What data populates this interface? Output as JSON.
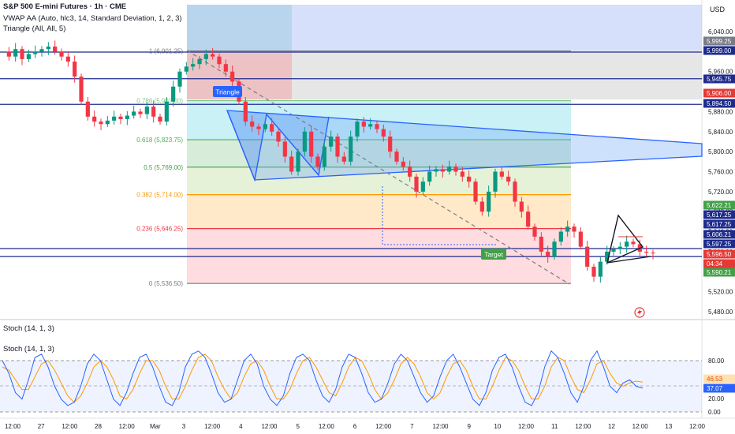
{
  "header": {
    "symbol": "S&P 500 E-mini Futures · 1h · CME",
    "indicator_vwap": "VWAP AA (Auto, hlc3, 14, Standard Deviation, 1, 2, 3)",
    "indicator_triangle": "Triangle (All, All, 5)"
  },
  "axis": {
    "currency": "USD",
    "price_ticks": [
      "6,040.00",
      "6,000.00",
      "5,960.00",
      "5,920.00",
      "5,880.00",
      "5,840.00",
      "5,800.00",
      "5,760.00",
      "5,720.00",
      "5,680.00",
      "5,640.00",
      "5,600.00",
      "5,560.00",
      "5,520.00",
      "5,480.00"
    ],
    "time_ticks": [
      "12:00",
      "27",
      "12:00",
      "28",
      "12:00",
      "Mar",
      "3",
      "12:00",
      "4",
      "12:00",
      "5",
      "12:00",
      "6",
      "12:00",
      "7",
      "12:00",
      "9",
      "10",
      "12:00",
      "11",
      "12:00",
      "12",
      "12:00",
      "13",
      "12:00"
    ],
    "stoch_ticks": [
      "80.00",
      "20.00",
      "0.00"
    ]
  },
  "price_badges": [
    {
      "text": "5,999.25",
      "bg": "#787b86"
    },
    {
      "text": "5,999.00",
      "bg": "#1e2b8c"
    },
    {
      "text": "5,945.75",
      "bg": "#1e2b8c"
    },
    {
      "text": "5,906.00",
      "bg": "#e53935"
    },
    {
      "text": "5,894.50",
      "bg": "#1e2b8c"
    },
    {
      "text": "5,622.21",
      "bg": "#43a047"
    },
    {
      "text": "5,617.25",
      "bg": "#1e2b8c"
    },
    {
      "text": "5,617.25",
      "bg": "#1e2b8c"
    },
    {
      "text": "5,606.21",
      "bg": "#1e2b8c"
    },
    {
      "text": "5,597.25",
      "bg": "#1e2b8c"
    },
    {
      "text": "5,596.50",
      "bg": "#e53935"
    },
    {
      "text": "04:34",
      "bg": "#e53935"
    },
    {
      "text": "5,590.21",
      "bg": "#43a047"
    }
  ],
  "stoch_badges": [
    {
      "text": "46.53",
      "bg": "#ffe0b2",
      "fg": "#e65100"
    },
    {
      "text": "37.07",
      "bg": "#2962ff",
      "fg": "#ffffff"
    }
  ],
  "fib_levels": [
    {
      "label": "1 (6,001.25)",
      "price": 6001.25,
      "color": "#787b86"
    },
    {
      "label": "0.786 (5,902.00)",
      "price": 5902.0,
      "color": "#81c784"
    },
    {
      "label": "0.618 (5,823.75)",
      "price": 5823.75,
      "color": "#4caf50"
    },
    {
      "label": "0.5 (5,769.00)",
      "price": 5769.0,
      "color": "#43a047"
    },
    {
      "label": "0.382 (5,714.00)",
      "price": 5714.0,
      "color": "#ff9800"
    },
    {
      "label": "0.236 (5,646.25)",
      "price": 5646.25,
      "color": "#f23645"
    },
    {
      "label": "0 (5,536.50)",
      "price": 5536.5,
      "color": "#787b86"
    }
  ],
  "annotations": {
    "triangle_label": "Triangle",
    "target_label": "Target"
  },
  "stoch": {
    "label_top": "Stoch (14, 1, 3)",
    "label_pane": "Stoch (14, 1, 3)"
  },
  "chart_data": {
    "type": "candlestick",
    "title": "S&P 500 E-mini Futures · 1h · CME",
    "ylim": [
      5480,
      6060
    ],
    "horizontal_levels": [
      5999.0,
      5945.75,
      5894.5,
      5606.21,
      5590.21
    ],
    "series": [
      {
        "name": "Price (approximate close path)",
        "values": [
          6000,
          5990,
          6005,
          5985,
          5995,
          6000,
          6005,
          6010,
          6000,
          5990,
          5980,
          5950,
          5900,
          5870,
          5860,
          5855,
          5862,
          5870,
          5865,
          5872,
          5880,
          5875,
          5890,
          5870,
          5860,
          5900,
          5930,
          5960,
          5970,
          5975,
          5985,
          5995,
          5990,
          5975,
          5960,
          5940,
          5900,
          5860,
          5850,
          5845,
          5855,
          5840,
          5820,
          5790,
          5760,
          5800,
          5840,
          5790,
          5770,
          5810,
          5830,
          5790,
          5780,
          5830,
          5860,
          5850,
          5855,
          5845,
          5830,
          5800,
          5780,
          5770,
          5750,
          5720,
          5740,
          5760,
          5765,
          5760,
          5770,
          5760,
          5750,
          5740,
          5700,
          5680,
          5720,
          5760,
          5750,
          5740,
          5700,
          5680,
          5650,
          5630,
          5600,
          5590,
          5620,
          5640,
          5650,
          5640,
          5610,
          5570,
          5550,
          5580,
          5600,
          5605,
          5610,
          5620,
          5615,
          5600,
          5598,
          5597
        ]
      }
    ],
    "stoch_series": [
      {
        "name": "%K",
        "values": [
          80,
          60,
          30,
          20,
          50,
          85,
          90,
          70,
          40,
          20,
          10,
          15,
          40,
          75,
          90,
          80,
          50,
          20,
          10,
          30,
          60,
          85,
          90,
          70,
          40,
          15,
          10,
          30,
          70,
          90,
          95,
          85,
          60,
          30,
          15,
          20,
          50,
          80,
          90,
          75,
          40,
          20,
          10,
          25,
          60,
          85,
          90,
          80,
          50,
          25,
          15,
          35,
          70,
          90,
          85,
          60,
          30,
          15,
          20,
          45,
          75,
          90,
          80,
          55,
          30,
          15,
          25,
          55,
          80,
          90,
          70,
          45,
          20,
          10,
          30,
          65,
          85,
          90,
          70,
          40,
          15,
          10,
          30,
          70,
          95,
          85,
          60,
          30,
          15,
          40,
          80,
          95,
          70,
          40,
          30,
          45,
          50,
          40,
          37
        ]
      },
      {
        "name": "%D",
        "values": [
          70,
          65,
          50,
          35,
          35,
          55,
          75,
          80,
          65,
          45,
          25,
          15,
          25,
          45,
          70,
          80,
          70,
          50,
          25,
          20,
          35,
          60,
          80,
          80,
          65,
          40,
          20,
          20,
          40,
          65,
          85,
          90,
          80,
          55,
          35,
          20,
          30,
          55,
          75,
          80,
          65,
          40,
          20,
          20,
          35,
          60,
          80,
          85,
          70,
          50,
          30,
          25,
          45,
          70,
          85,
          80,
          60,
          35,
          20,
          30,
          50,
          75,
          85,
          75,
          55,
          30,
          20,
          30,
          55,
          75,
          80,
          65,
          40,
          20,
          20,
          40,
          65,
          85,
          80,
          65,
          40,
          20,
          20,
          40,
          70,
          85,
          80,
          55,
          35,
          30,
          50,
          75,
          80,
          60,
          45,
          40,
          45,
          48,
          46.53
        ]
      }
    ]
  }
}
